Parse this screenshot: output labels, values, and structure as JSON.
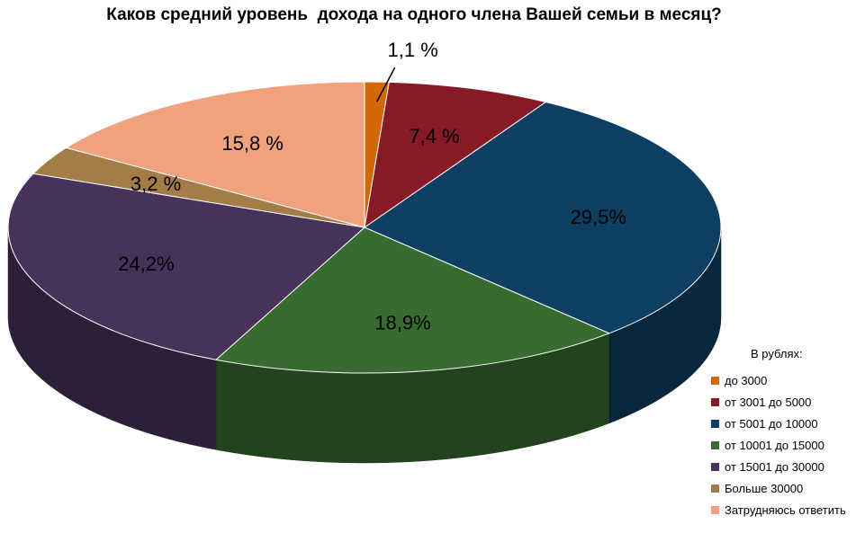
{
  "chart_data": {
    "type": "pie",
    "title": "Каков средний уровень  дохода на одного члена Вашей семьи в месяц?",
    "legend_title": "В рублях:",
    "legend_position": "bottom-right",
    "categories": [
      "до 3000",
      "от 3001 до 5000",
      "от 5001 до 10000",
      "от 10001 до 15000",
      "от 15001 до 30000",
      "Больше 30000",
      "Затрудняюсь ответить"
    ],
    "values": [
      1.1,
      7.4,
      29.5,
      18.9,
      24.2,
      3.2,
      15.8
    ],
    "data_labels": [
      "1,1 %",
      "7,4 %",
      "29,5%",
      "18,9%",
      "24,2%",
      "3,2 %",
      "15,8 %"
    ],
    "colors": [
      "#D3680B",
      "#871A26",
      "#0C3F62",
      "#386B30",
      "#473259",
      "#A37C47",
      "#F0A27E"
    ]
  }
}
